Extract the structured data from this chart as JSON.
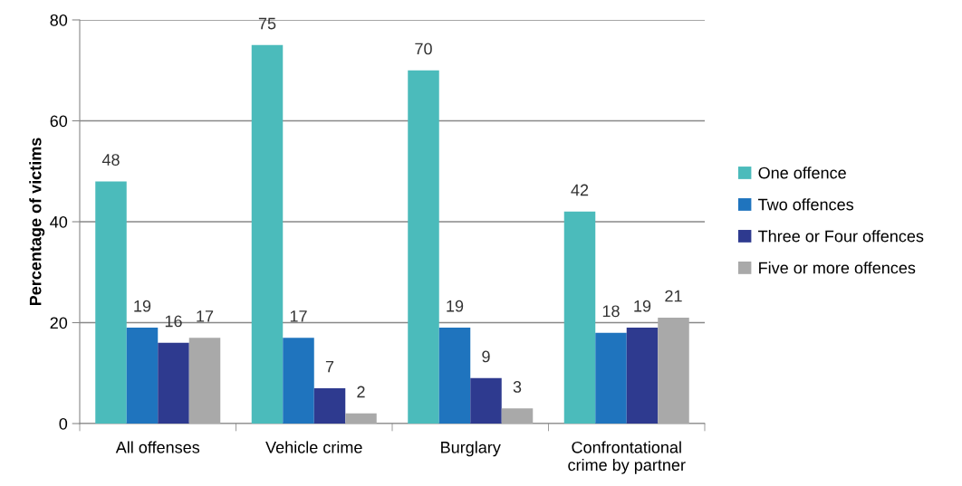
{
  "chart_data": {
    "type": "bar",
    "ylabel": "Percentage of victims",
    "categories": [
      "All offenses",
      "Vehicle crime",
      "Burglary",
      "Confrontational\ncrime by partner"
    ],
    "series": [
      {
        "name": "One offence",
        "color": "#4bbbbb",
        "values": [
          48,
          75,
          70,
          42
        ]
      },
      {
        "name": "Two offences",
        "color": "#1f74be",
        "values": [
          19,
          17,
          19,
          18
        ]
      },
      {
        "name": "Three or Four offences",
        "color": "#2e3a8f",
        "values": [
          16,
          7,
          9,
          19
        ]
      },
      {
        "name": "Five or more offences",
        "color": "#a9a9a9",
        "values": [
          17,
          2,
          3,
          21
        ]
      }
    ],
    "ylim": [
      0,
      80
    ],
    "yticks": [
      0,
      20,
      40,
      60,
      80
    ],
    "grid": "y",
    "legend": "right",
    "data_labels": true
  }
}
